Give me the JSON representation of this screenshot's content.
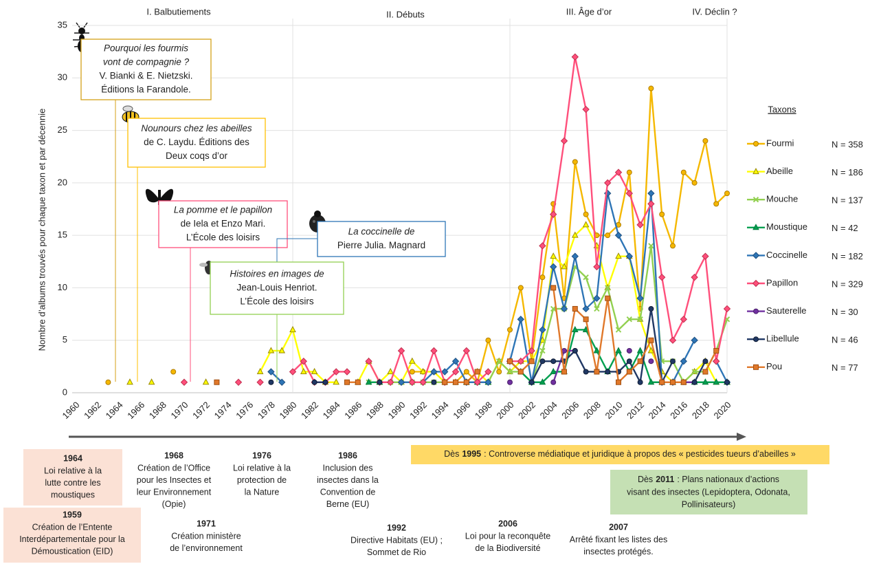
{
  "chart_data": {
    "type": "line",
    "y_label": "Nombre d’albums trouvés pour chaque taxon et par décennie",
    "periods": [
      "I. Balbutiements",
      "II. Débuts",
      "III. Âge d’or",
      "IV. Déclin ?"
    ],
    "legend_title": "Taxons",
    "x": [
      1960,
      1961,
      1962,
      1963,
      1964,
      1965,
      1966,
      1967,
      1968,
      1969,
      1970,
      1971,
      1972,
      1973,
      1974,
      1975,
      1976,
      1977,
      1978,
      1979,
      1980,
      1981,
      1982,
      1983,
      1984,
      1985,
      1986,
      1987,
      1988,
      1989,
      1990,
      1991,
      1992,
      1993,
      1994,
      1995,
      1996,
      1997,
      1998,
      1999,
      2000,
      2001,
      2002,
      2003,
      2004,
      2005,
      2006,
      2007,
      2008,
      2009,
      2010,
      2011,
      2012,
      2013,
      2014,
      2015,
      2016,
      2017,
      2018,
      2019,
      2020
    ],
    "xlim": [
      1960,
      2020
    ],
    "xticks": [
      1960,
      1962,
      1964,
      1966,
      1968,
      1970,
      1972,
      1974,
      1976,
      1978,
      1980,
      1982,
      1984,
      1986,
      1988,
      1990,
      1992,
      1994,
      1996,
      1998,
      2000,
      2002,
      2004,
      2006,
      2008,
      2010,
      2012,
      2014,
      2016,
      2018,
      2020
    ],
    "ylim": [
      0,
      35
    ],
    "yticks": [
      0,
      5,
      10,
      15,
      20,
      25,
      30,
      35
    ],
    "grid": true,
    "series": [
      {
        "name": "Fourmi",
        "n_label": "N = 358",
        "color": "#f5b800",
        "edgecolor": "#b07d00",
        "marker": "circle",
        "values": [
          null,
          null,
          null,
          1,
          null,
          null,
          null,
          null,
          null,
          2,
          null,
          null,
          null,
          null,
          null,
          null,
          null,
          null,
          null,
          null,
          null,
          null,
          null,
          1,
          null,
          null,
          null,
          null,
          null,
          null,
          null,
          2,
          2,
          null,
          1,
          1,
          2,
          1,
          5,
          2,
          6,
          10,
          3,
          11,
          18,
          9,
          22,
          17,
          15,
          15,
          16,
          21,
          8,
          29,
          17,
          14,
          21,
          20,
          24,
          18,
          19
        ]
      },
      {
        "name": "Abeille",
        "n_label": "N = 186",
        "color": "#ffff00",
        "edgecolor": "#9a8a00",
        "marker": "triangle",
        "values": [
          null,
          null,
          null,
          null,
          null,
          1,
          null,
          1,
          null,
          null,
          null,
          null,
          1,
          null,
          null,
          null,
          null,
          2,
          4,
          4,
          6,
          2,
          2,
          1,
          1,
          null,
          1,
          3,
          1,
          2,
          1,
          3,
          2,
          2,
          1,
          1,
          1,
          2,
          1,
          3,
          2,
          3,
          3,
          5,
          13,
          12,
          15,
          16,
          14,
          10,
          13,
          13,
          7,
          4,
          2,
          1,
          1,
          2,
          3,
          1,
          1
        ]
      },
      {
        "name": "Mouche",
        "n_label": "N = 137",
        "color": "#92d050",
        "edgecolor": "#6aa030",
        "marker": "cross",
        "values": [
          null,
          null,
          null,
          null,
          null,
          null,
          null,
          null,
          null,
          null,
          null,
          null,
          null,
          null,
          null,
          null,
          null,
          null,
          null,
          null,
          null,
          null,
          null,
          null,
          null,
          null,
          null,
          1,
          1,
          1,
          1,
          1,
          1,
          1,
          1,
          1,
          1,
          1,
          1,
          3,
          2,
          2,
          1,
          4,
          8,
          8,
          12,
          11,
          8,
          10,
          6,
          7,
          7,
          14,
          3,
          3,
          1,
          2,
          2,
          4,
          7
        ]
      },
      {
        "name": "Moustique",
        "n_label": "N = 42",
        "color": "#00a050",
        "edgecolor": "#007a3c",
        "marker": "triangle",
        "values": [
          null,
          null,
          null,
          null,
          null,
          null,
          null,
          null,
          null,
          null,
          null,
          null,
          null,
          null,
          null,
          null,
          null,
          null,
          null,
          null,
          null,
          null,
          null,
          null,
          null,
          null,
          null,
          1,
          1,
          null,
          null,
          null,
          null,
          null,
          null,
          null,
          1,
          1,
          1,
          null,
          3,
          2,
          1,
          1,
          2,
          2,
          6,
          6,
          4,
          2,
          4,
          2,
          4,
          1,
          1,
          1,
          null,
          1,
          1,
          1,
          1
        ]
      },
      {
        "name": "Coccinelle",
        "n_label": "N = 182",
        "color": "#2e75b6",
        "edgecolor": "#1f5080",
        "marker": "diamond",
        "values": [
          null,
          null,
          null,
          null,
          null,
          null,
          null,
          null,
          null,
          null,
          null,
          null,
          null,
          null,
          null,
          null,
          null,
          null,
          2,
          1,
          null,
          null,
          null,
          null,
          null,
          null,
          null,
          null,
          null,
          null,
          1,
          1,
          1,
          2,
          2,
          3,
          1,
          1,
          1,
          null,
          3,
          7,
          1,
          6,
          12,
          8,
          13,
          8,
          9,
          19,
          15,
          13,
          9,
          19,
          1,
          1,
          3,
          5,
          null,
          3,
          1
        ]
      },
      {
        "name": "Papillon",
        "n_label": "N = 329",
        "color": "#ff4f7b",
        "edgecolor": "#c0304f",
        "marker": "diamond",
        "values": [
          null,
          null,
          null,
          null,
          null,
          null,
          null,
          null,
          null,
          null,
          1,
          null,
          null,
          null,
          null,
          1,
          null,
          1,
          null,
          null,
          2,
          3,
          1,
          1,
          2,
          2,
          null,
          3,
          1,
          1,
          4,
          1,
          1,
          4,
          1,
          2,
          4,
          1,
          2,
          null,
          3,
          3,
          4,
          14,
          17,
          24,
          32,
          27,
          12,
          20,
          21,
          19,
          16,
          18,
          11,
          5,
          7,
          11,
          13,
          3,
          8
        ]
      },
      {
        "name": "Sauterelle",
        "n_label": "N = 30",
        "color": "#7030a0",
        "edgecolor": "#4a1f6a",
        "marker": "circle",
        "values": [
          null,
          null,
          null,
          null,
          null,
          null,
          null,
          null,
          null,
          null,
          null,
          null,
          null,
          null,
          null,
          null,
          null,
          null,
          null,
          null,
          null,
          null,
          null,
          null,
          null,
          null,
          null,
          null,
          null,
          null,
          null,
          null,
          null,
          null,
          null,
          null,
          null,
          null,
          null,
          null,
          1,
          null,
          null,
          null,
          1,
          4,
          4,
          null,
          null,
          null,
          null,
          4,
          null,
          3,
          null,
          null,
          1,
          1,
          null,
          null,
          null
        ]
      },
      {
        "name": "Libellule",
        "n_label": "N = 46",
        "color": "#203864",
        "edgecolor": "#101c34",
        "marker": "circle",
        "values": [
          null,
          null,
          null,
          null,
          null,
          null,
          null,
          null,
          null,
          null,
          null,
          null,
          null,
          null,
          null,
          null,
          null,
          null,
          1,
          null,
          null,
          null,
          1,
          1,
          null,
          null,
          null,
          null,
          1,
          null,
          null,
          null,
          null,
          1,
          null,
          null,
          1,
          null,
          null,
          null,
          null,
          null,
          1,
          3,
          3,
          3,
          4,
          2,
          2,
          2,
          2,
          3,
          1,
          8,
          1,
          3,
          null,
          1,
          3,
          null,
          1
        ]
      },
      {
        "name": "Pou",
        "n_label": "N = 77",
        "color": "#e0782a",
        "edgecolor": "#a04e10",
        "marker": "square",
        "values": [
          null,
          null,
          null,
          null,
          null,
          null,
          null,
          null,
          null,
          null,
          null,
          null,
          null,
          1,
          null,
          null,
          null,
          null,
          null,
          null,
          null,
          null,
          null,
          null,
          null,
          1,
          1,
          null,
          null,
          null,
          null,
          null,
          null,
          null,
          1,
          1,
          1,
          2,
          null,
          null,
          3,
          2,
          3,
          null,
          10,
          2,
          8,
          7,
          2,
          9,
          1,
          2,
          3,
          5,
          1,
          1,
          1,
          null,
          2,
          4,
          null
        ]
      }
    ]
  },
  "books": [
    {
      "lines": [
        "Pourquoi les fourmis",
        "vont de compagnie ?",
        "V. Bianki & E. Nietzski.",
        "Éditions la Farandole."
      ],
      "color": "#d4a017"
    },
    {
      "lines": [
        "Nounours chez les abeilles",
        "de C. Laydu. Éditions des",
        "Deux coqs d’or"
      ],
      "color": "#ffc000"
    },
    {
      "lines": [
        "La pomme et le papillon",
        "de Iela et Enzo Mari.",
        "L’École des loisirs"
      ],
      "color": "#ff4f7b"
    },
    {
      "lines": [
        "La coccinelle de",
        "Pierre Julia. Magnard"
      ],
      "color": "#2e75b6"
    },
    {
      "lines": [
        "Histoires en images de",
        "Jean-Louis Henriot.",
        "L’École des loisirs"
      ],
      "color": "#92d050"
    }
  ],
  "timeline": [
    {
      "year": "1964",
      "lines": [
        "Loi relative à la",
        "lutte contre les",
        "moustiques"
      ]
    },
    {
      "year": "1959",
      "lines": [
        "Création de l’Entente",
        "Interdépartementale pour la",
        "Démoustication (EID)"
      ]
    },
    {
      "year": "1968",
      "lines": [
        "Création de l’Office",
        "pour les Insectes et",
        "leur Environnement",
        "(Opie)"
      ]
    },
    {
      "year": "1976",
      "lines": [
        "Loi relative à la",
        "protection de",
        "la Nature"
      ]
    },
    {
      "year": "1986",
      "lines": [
        "Inclusion des",
        "insectes dans la",
        "Convention de",
        "Berne (EU)"
      ]
    },
    {
      "year": "1971",
      "lines": [
        "Création ministère",
        "de l’environnement"
      ]
    },
    {
      "year": "1992",
      "lines": [
        "Directive Habitats (EU) ;",
        "Sommet de Rio"
      ]
    },
    {
      "year": "2006",
      "lines": [
        "Loi pour la reconquête",
        "de la Biodiversité"
      ]
    },
    {
      "year": "2007",
      "lines": [
        "Arrêté fixant les listes des",
        "insectes protégés."
      ]
    }
  ],
  "banners": [
    {
      "prefix": "Dès",
      "year": "1995",
      "lines": [
        ": Controverse médiatique et juridique à propos des « pesticides tueurs d’abeilles »"
      ]
    },
    {
      "prefix": "Dès",
      "year": "2011",
      "lines": [
        ": Plans nationaux d’actions",
        "visant des insectes (Lepidoptera, Odonata,",
        "Pollinisateurs)"
      ]
    }
  ]
}
